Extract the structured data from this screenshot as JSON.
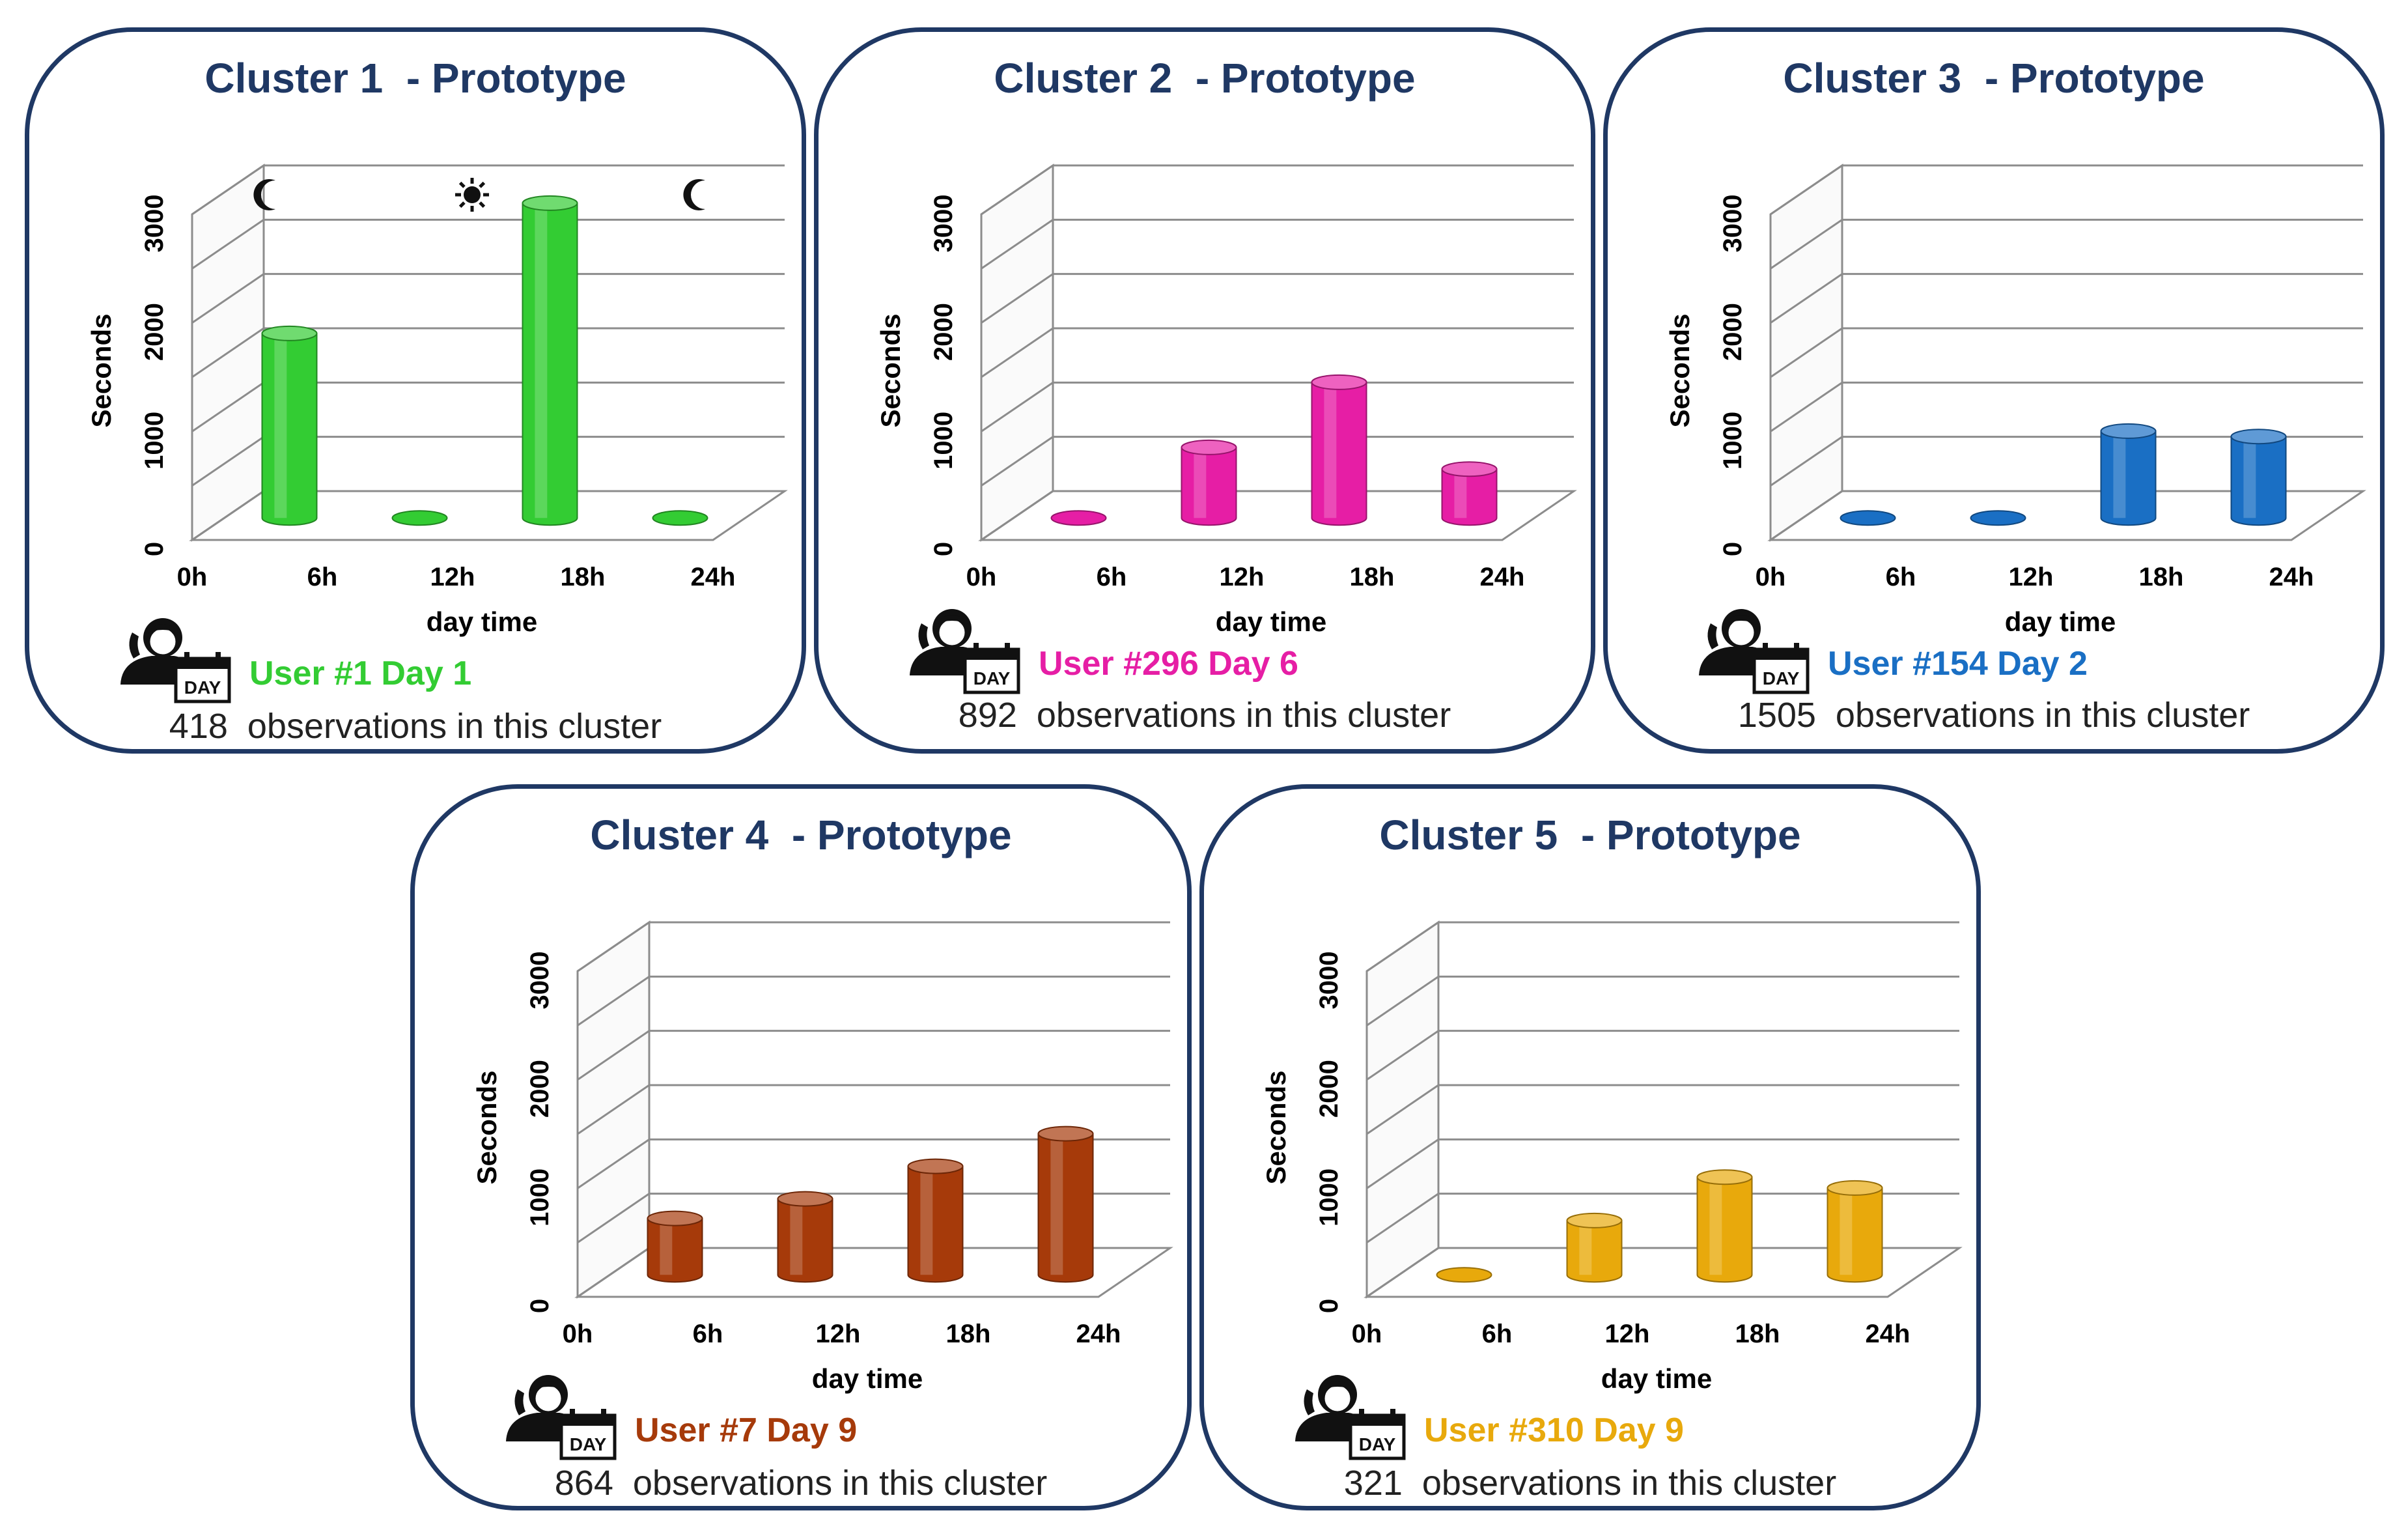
{
  "panels": [
    {
      "title": "Cluster 1  - Prototype",
      "user_label": "User #1 Day 1",
      "observations_text": "418  observations in this cluster",
      "color": "#33cc33",
      "day_night_icons": [
        "crescent-moon-icon",
        "sun-icon",
        "crescent-moon-icon"
      ],
      "chart_data": {
        "type": "bar",
        "title": "Cluster 1  - Prototype",
        "categories": [
          "0h-6h",
          "6h-12h",
          "12h-18h",
          "18h-24h"
        ],
        "x_ticks": [
          "0h",
          "6h",
          "12h",
          "18h",
          "24h"
        ],
        "values": [
          1700,
          0,
          2900,
          0
        ],
        "xlabel": "day time",
        "ylabel": "Seconds",
        "y_ticks": [
          "0",
          "1000",
          "2000",
          "3000"
        ],
        "ylim": [
          0,
          3000
        ]
      }
    },
    {
      "title": "Cluster 2  - Prototype",
      "user_label": "User #296 Day 6",
      "observations_text": "892  observations in this cluster",
      "color": "#e61ea5",
      "chart_data": {
        "type": "bar",
        "title": "Cluster 2  - Prototype",
        "categories": [
          "0h-6h",
          "6h-12h",
          "12h-18h",
          "18h-24h"
        ],
        "x_ticks": [
          "0h",
          "6h",
          "12h",
          "18h",
          "24h"
        ],
        "values": [
          0,
          650,
          1250,
          450
        ],
        "xlabel": "day time",
        "ylabel": "Seconds",
        "y_ticks": [
          "0",
          "1000",
          "2000",
          "3000"
        ],
        "ylim": [
          0,
          3000
        ]
      }
    },
    {
      "title": "Cluster 3  - Prototype",
      "user_label": "User #154 Day 2",
      "observations_text": "1505  observations in this cluster",
      "color": "#1a6fc4",
      "chart_data": {
        "type": "bar",
        "title": "Cluster 3  - Prototype",
        "categories": [
          "0h-6h",
          "6h-12h",
          "12h-18h",
          "18h-24h"
        ],
        "x_ticks": [
          "0h",
          "6h",
          "12h",
          "18h",
          "24h"
        ],
        "values": [
          0,
          0,
          800,
          750
        ],
        "xlabel": "day time",
        "ylabel": "Seconds",
        "y_ticks": [
          "0",
          "1000",
          "2000",
          "3000"
        ],
        "ylim": [
          0,
          3000
        ]
      }
    },
    {
      "title": "Cluster 4  - Prototype",
      "user_label": "User #7 Day 9",
      "observations_text": "864  observations in this cluster",
      "color": "#a63a0a",
      "chart_data": {
        "type": "bar",
        "title": "Cluster 4  - Prototype",
        "categories": [
          "0h-6h",
          "6h-12h",
          "12h-18h",
          "18h-24h"
        ],
        "x_ticks": [
          "0h",
          "6h",
          "12h",
          "18h",
          "24h"
        ],
        "values": [
          520,
          700,
          1000,
          1300
        ],
        "xlabel": "day time",
        "ylabel": "Seconds",
        "y_ticks": [
          "0",
          "1000",
          "2000",
          "3000"
        ],
        "ylim": [
          0,
          3000
        ]
      }
    },
    {
      "title": "Cluster 5  - Prototype",
      "user_label": "User #310 Day 9",
      "observations_text": "321  observations in this cluster",
      "color": "#e8a90c",
      "chart_data": {
        "type": "bar",
        "title": "Cluster 5  - Prototype",
        "categories": [
          "0h-6h",
          "6h-12h",
          "12h-18h",
          "18h-24h"
        ],
        "x_ticks": [
          "0h",
          "6h",
          "12h",
          "18h",
          "24h"
        ],
        "values": [
          0,
          500,
          900,
          800
        ],
        "xlabel": "day time",
        "ylabel": "Seconds",
        "y_ticks": [
          "0",
          "1000",
          "2000",
          "3000"
        ],
        "ylim": [
          0,
          3000
        ]
      }
    }
  ],
  "icon_badge_text": "DAY",
  "user_day_icon": "user-phone-calendar-icon"
}
